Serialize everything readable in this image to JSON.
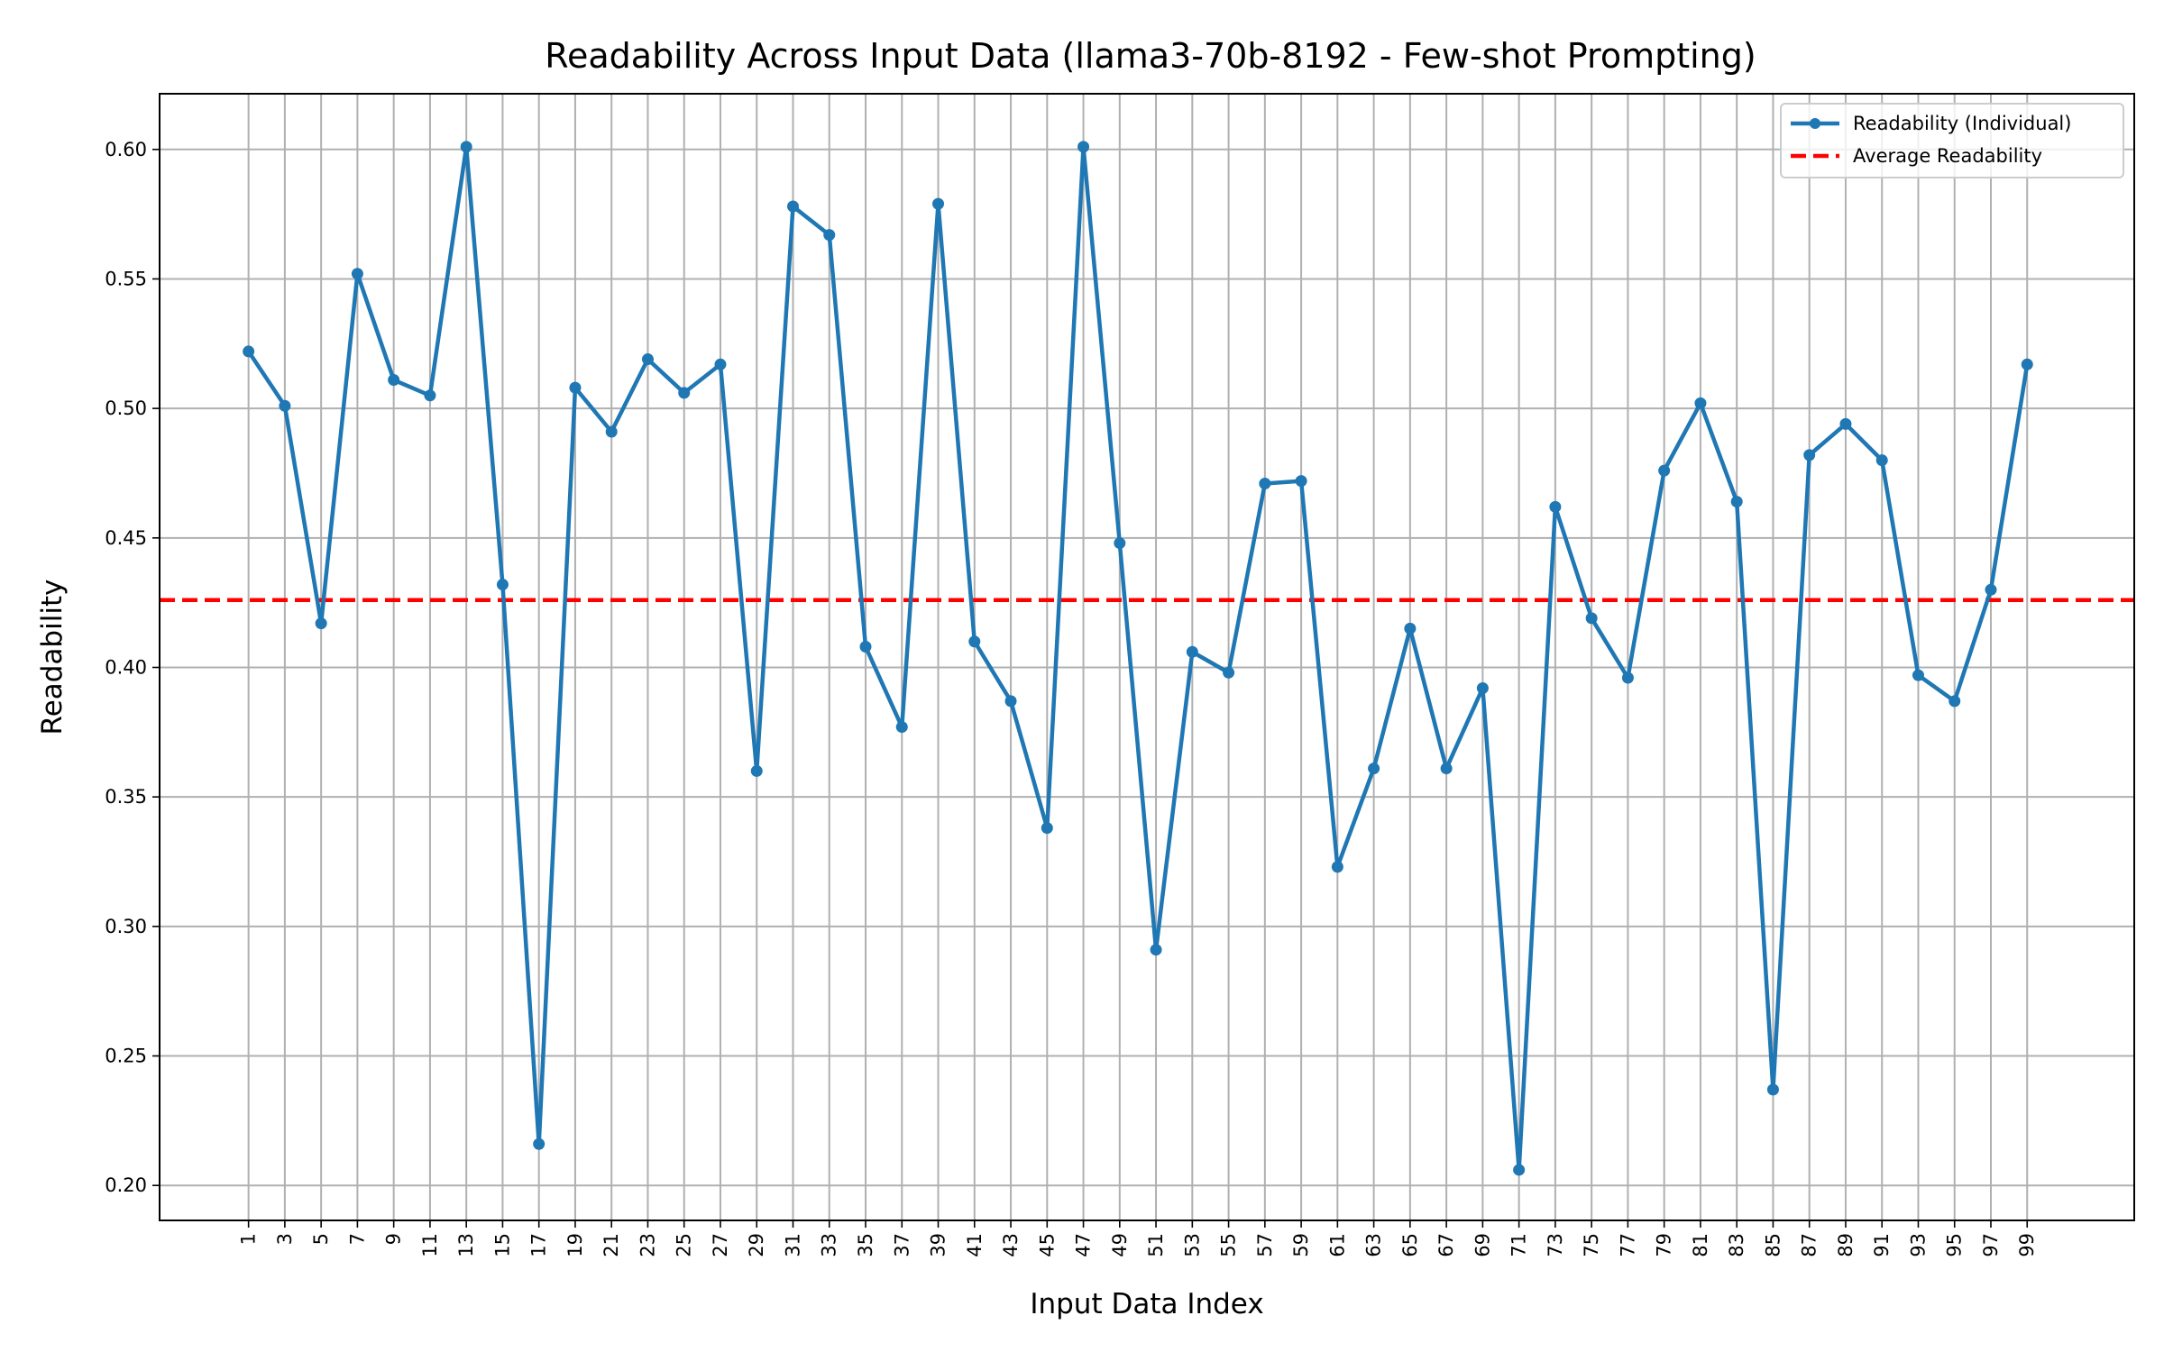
{
  "chart_data": {
    "type": "line",
    "title": "Readability Across Input Data (llama3-70b-8192 - Few-shot Prompting)",
    "xlabel": "Input Data Index",
    "ylabel": "Readability",
    "x": [
      1,
      3,
      5,
      7,
      9,
      11,
      13,
      15,
      17,
      19,
      21,
      23,
      25,
      27,
      29,
      31,
      33,
      35,
      37,
      39,
      41,
      43,
      45,
      47,
      49,
      51,
      53,
      55,
      57,
      59,
      61,
      63,
      65,
      67,
      69,
      71,
      73,
      75,
      77,
      79,
      81,
      83,
      85,
      87,
      89,
      91,
      93,
      95,
      97,
      99
    ],
    "x_ticks": [
      "1",
      "3",
      "5",
      "7",
      "9",
      "11",
      "13",
      "15",
      "17",
      "19",
      "21",
      "23",
      "25",
      "27",
      "29",
      "31",
      "33",
      "35",
      "37",
      "39",
      "41",
      "43",
      "45",
      "47",
      "49",
      "51",
      "53",
      "55",
      "57",
      "59",
      "61",
      "63",
      "65",
      "67",
      "69",
      "71",
      "73",
      "75",
      "77",
      "79",
      "81",
      "83",
      "85",
      "87",
      "89",
      "91",
      "93",
      "95",
      "97",
      "99"
    ],
    "xlim": [
      -3.9,
      104.9
    ],
    "ylim": [
      0.1865,
      0.6215
    ],
    "y_ticks": [
      0.2,
      0.25,
      0.3,
      0.35,
      0.4,
      0.45,
      0.5,
      0.55,
      0.6
    ],
    "y_tick_labels": [
      "0.20",
      "0.25",
      "0.30",
      "0.35",
      "0.40",
      "0.45",
      "0.50",
      "0.55",
      "0.60"
    ],
    "grid": true,
    "legend_position": "top-right",
    "series": [
      {
        "name": "Readability (Individual)",
        "color": "#1f77b4",
        "style": "solid-with-markers",
        "values": [
          0.522,
          0.501,
          0.417,
          0.552,
          0.511,
          0.505,
          0.601,
          0.432,
          0.216,
          0.508,
          0.491,
          0.519,
          0.506,
          0.517,
          0.36,
          0.578,
          0.567,
          0.408,
          0.377,
          0.579,
          0.41,
          0.387,
          0.338,
          0.601,
          0.448,
          0.291,
          0.406,
          0.398,
          0.471,
          0.472,
          0.323,
          0.361,
          0.415,
          0.361,
          0.392,
          0.206,
          0.462,
          0.419,
          0.396,
          0.476,
          0.502,
          0.464,
          0.237,
          0.482,
          0.494,
          0.48,
          0.397,
          0.387,
          0.43,
          0.517
        ]
      },
      {
        "name": "Average Readability",
        "color": "#ff0000",
        "style": "dashed",
        "value": 0.426
      }
    ]
  }
}
